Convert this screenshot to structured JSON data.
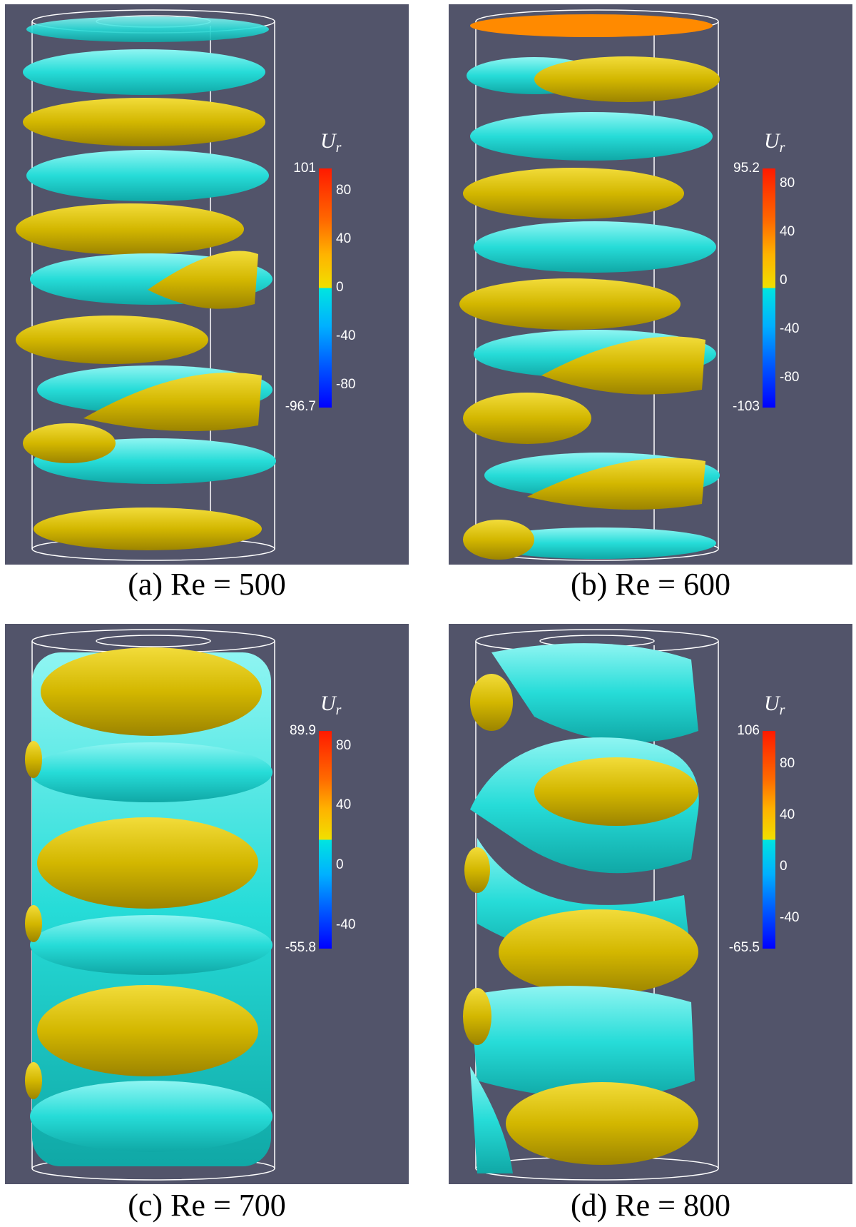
{
  "quantity": {
    "symbol": "U",
    "subscript": "r"
  },
  "colors": {
    "background": "#52546a",
    "positive": "#d9bf00",
    "negative": "#2ee0dc"
  },
  "panels": [
    {
      "caption": "(a)  Re = 500",
      "max": "101",
      "min": "-96.7",
      "ticks": [
        "80",
        "40",
        "0",
        "-40",
        "-80"
      ]
    },
    {
      "caption": "(b)  Re = 600",
      "max": "95.2",
      "min": "-103",
      "ticks": [
        "80",
        "40",
        "0",
        "-40",
        "-80"
      ]
    },
    {
      "caption": "(c)  Re = 700",
      "max": "89.9",
      "min": "-55.8",
      "ticks": [
        "80",
        "40",
        "0",
        "-40"
      ]
    },
    {
      "caption": "(d)  Re = 800",
      "max": "106",
      "min": "-65.5",
      "ticks": [
        "80",
        "40",
        "0",
        "-40"
      ]
    }
  ]
}
